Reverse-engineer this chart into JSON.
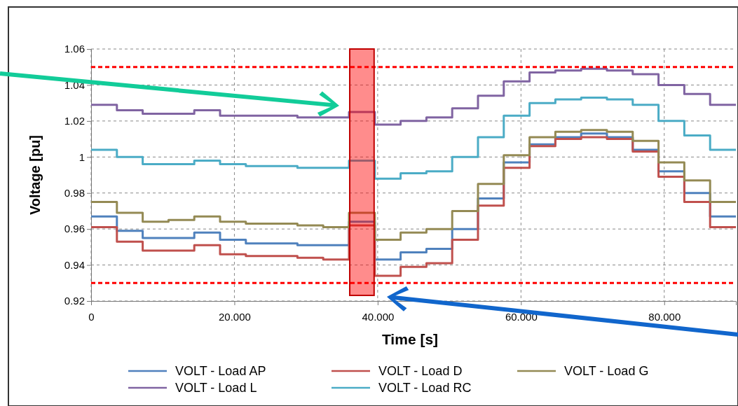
{
  "chart_data": {
    "type": "step",
    "xlabel": "Time [s]",
    "ylabel": "Voltage [pu]",
    "x": [
      0,
      3.6,
      7.2,
      10.8,
      14.4,
      18,
      21.6,
      25.2,
      28.8,
      32.4,
      36,
      39.6,
      43.2,
      46.8,
      50.4,
      54,
      57.6,
      61.2,
      64.8,
      68.4,
      72,
      75.6,
      79.2,
      82.8,
      86.4,
      90
    ],
    "series": [
      {
        "name": "VOLT - Load AP",
        "color": "#4f81bd",
        "values": [
          0.967,
          0.959,
          0.955,
          0.955,
          0.958,
          0.954,
          0.952,
          0.952,
          0.951,
          0.951,
          0.964,
          0.943,
          0.947,
          0.949,
          0.96,
          0.977,
          0.997,
          1.007,
          1.011,
          1.013,
          1.011,
          1.004,
          0.992,
          0.98,
          0.967,
          0.967
        ]
      },
      {
        "name": "VOLT - Load D",
        "color": "#c0504d",
        "values": [
          0.961,
          0.953,
          0.948,
          0.948,
          0.951,
          0.946,
          0.945,
          0.945,
          0.944,
          0.943,
          0.962,
          0.934,
          0.939,
          0.941,
          0.954,
          0.973,
          0.994,
          1.006,
          1.01,
          1.011,
          1.01,
          1.003,
          0.989,
          0.975,
          0.961,
          0.961
        ]
      },
      {
        "name": "VOLT - Load G",
        "color": "#948a54",
        "values": [
          0.975,
          0.969,
          0.964,
          0.965,
          0.967,
          0.964,
          0.963,
          0.963,
          0.962,
          0.961,
          0.969,
          0.954,
          0.958,
          0.96,
          0.97,
          0.985,
          1.001,
          1.011,
          1.014,
          1.015,
          1.014,
          1.009,
          0.997,
          0.987,
          0.975,
          0.975
        ]
      },
      {
        "name": "VOLT - Load L",
        "color": "#8064a2",
        "values": [
          1.029,
          1.026,
          1.024,
          1.024,
          1.026,
          1.023,
          1.023,
          1.023,
          1.022,
          1.022,
          1.025,
          1.018,
          1.02,
          1.022,
          1.027,
          1.034,
          1.042,
          1.047,
          1.048,
          1.049,
          1.048,
          1.046,
          1.04,
          1.035,
          1.029,
          1.029
        ]
      },
      {
        "name": "VOLT - Load RC",
        "color": "#4bacc6",
        "values": [
          1.004,
          1.0,
          0.996,
          0.996,
          0.998,
          0.996,
          0.995,
          0.995,
          0.994,
          0.994,
          0.998,
          0.988,
          0.991,
          0.992,
          1.0,
          1.011,
          1.023,
          1.03,
          1.032,
          1.033,
          1.032,
          1.029,
          1.02,
          1.012,
          1.004,
          1.004
        ]
      }
    ],
    "xlim": [
      0,
      90
    ],
    "xticks": [
      0,
      {
        "value": 20,
        "label": "20.000"
      },
      {
        "value": 40,
        "label": "40.000"
      },
      {
        "value": 60,
        "label": "60.000"
      },
      {
        "value": 80,
        "label": "80.000"
      }
    ],
    "ylim": [
      0.92,
      1.06
    ],
    "yticks": [
      0.92,
      0.94,
      0.96,
      0.98,
      {
        "value": 1,
        "label": "1"
      },
      1.02,
      1.04,
      1.06
    ],
    "ref_lines": [
      {
        "axis": "y",
        "value": 1.05,
        "color": "#ff0000",
        "line_style": "dashed"
      },
      {
        "axis": "y",
        "value": 0.93,
        "color": "#ff0000",
        "line_style": "dashed"
      }
    ],
    "bands": [
      {
        "axis": "x",
        "from": 36.1,
        "to": 39.5,
        "color": "#ff0000"
      }
    ],
    "grid": true,
    "legend": "bottom",
    "line_style": "solid",
    "marker": "none"
  }
}
